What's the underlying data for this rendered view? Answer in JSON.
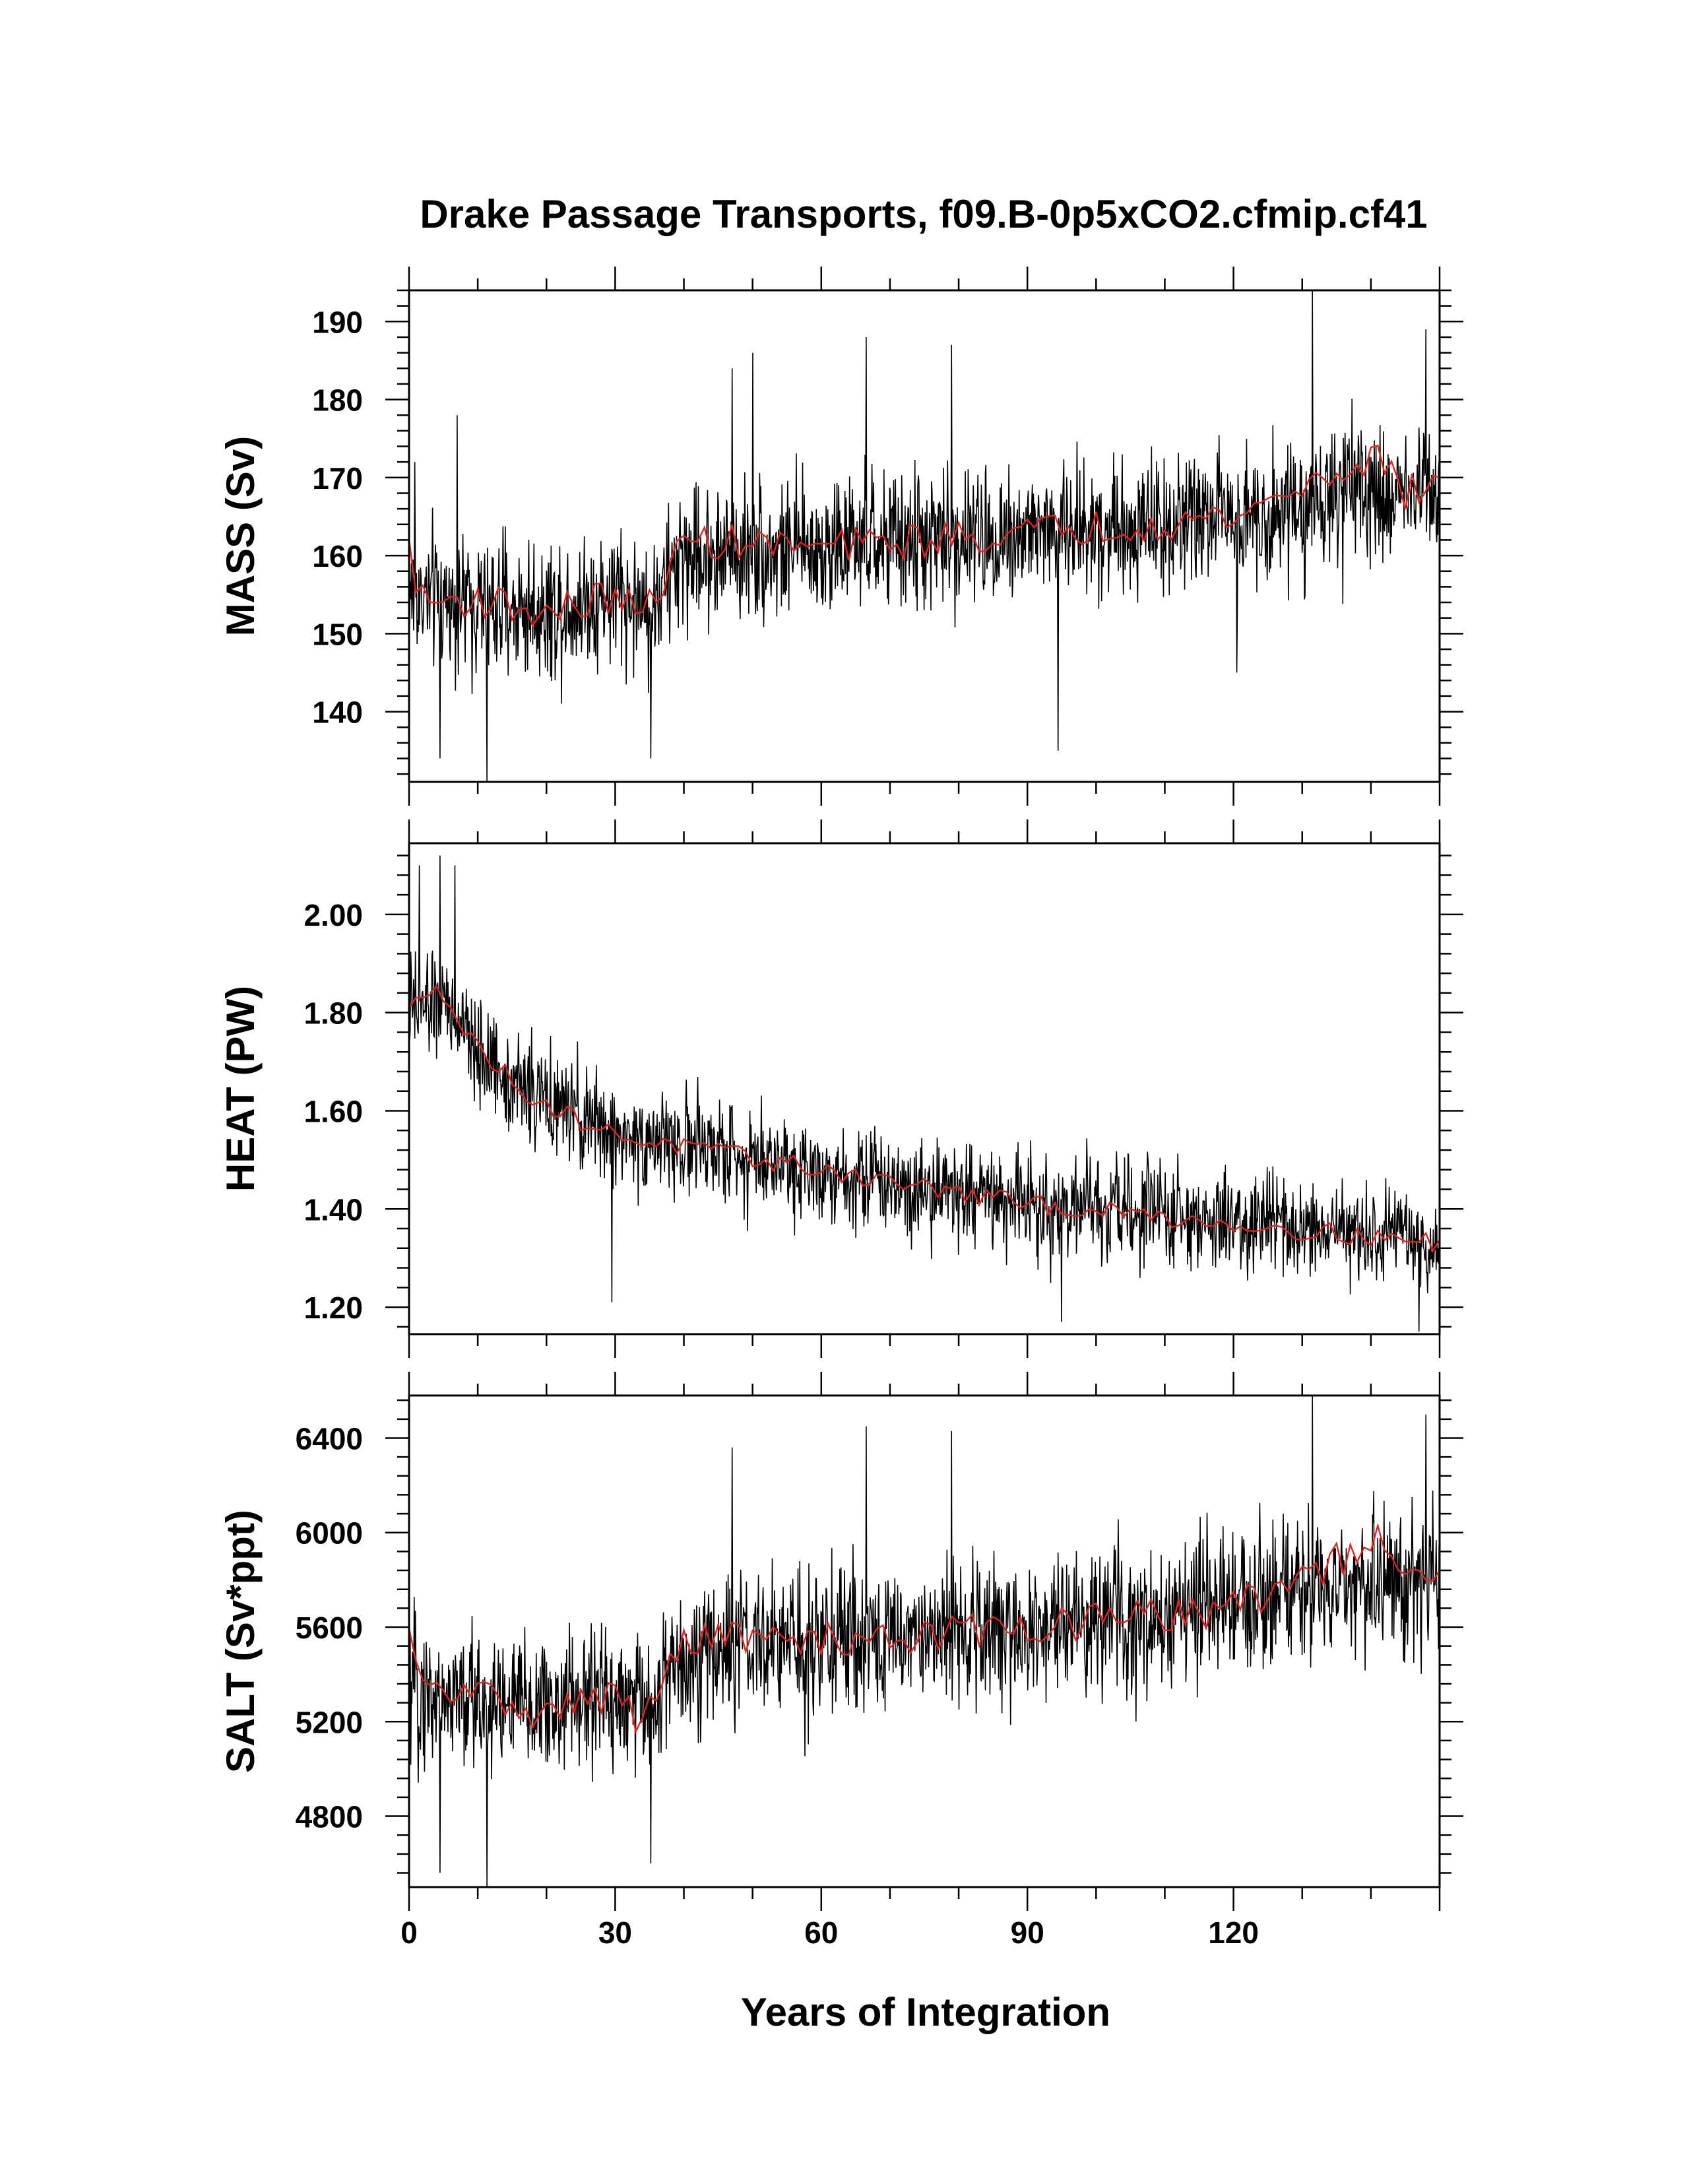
{
  "title": "Drake Passage Transports, f09.B-0p5xCO2.cfmip.cf41",
  "colors": {
    "monthly": "#000000",
    "annual": "#e0231b",
    "frame": "#000000"
  },
  "chart_data": [
    {
      "type": "line",
      "panel": "mass",
      "ylabel": "MASS (Sv)",
      "xlim": [
        0,
        150
      ],
      "ylim": [
        131,
        194
      ],
      "yticks": [
        140,
        150,
        160,
        170,
        180,
        190
      ],
      "ytick_labels": [
        "140",
        "150",
        "160",
        "170",
        "180",
        "190"
      ],
      "series": [
        {
          "kind": "monthly",
          "trend": [
            [
              0,
              155
            ],
            [
              10,
              153.5
            ],
            [
              20,
              153
            ],
            [
              30,
              155
            ],
            [
              35,
              153
            ],
            [
              40,
              160
            ],
            [
              60,
              161
            ],
            [
              90,
              163
            ],
            [
              120,
              165
            ],
            [
              150,
              169
            ]
          ],
          "spread": 8.5,
          "spikes": [
            [
              0.8,
              172
            ],
            [
              4.5,
              134
            ],
            [
              7,
              178
            ],
            [
              11.3,
              131
            ],
            [
              35.2,
              134
            ],
            [
              47,
              184
            ],
            [
              50,
              186
            ],
            [
              66.5,
              188
            ],
            [
              79,
              187
            ],
            [
              94.5,
              135
            ],
            [
              120.5,
              145
            ],
            [
              131.5,
              194
            ],
            [
              148,
              189
            ]
          ]
        },
        {
          "kind": "annual",
          "trend": [
            [
              0,
              161
            ],
            [
              2,
              154
            ],
            [
              10,
              154.5
            ],
            [
              20,
              152.5
            ],
            [
              30,
              155
            ],
            [
              34,
              152
            ],
            [
              38,
              159
            ],
            [
              41,
              162
            ],
            [
              60,
              161
            ],
            [
              90,
              163
            ],
            [
              120,
              165
            ],
            [
              141,
              173
            ],
            [
              145,
              168
            ],
            [
              150,
              169
            ]
          ],
          "spread": 2.3
        }
      ]
    },
    {
      "type": "line",
      "panel": "heat",
      "ylabel": "HEAT (PW)",
      "xlim": [
        0,
        150
      ],
      "ylim": [
        1.145,
        2.145
      ],
      "yticks": [
        1.2,
        1.4,
        1.6,
        1.8,
        2.0
      ],
      "ytick_labels": [
        "1.20",
        "1.40",
        "1.60",
        "1.80",
        "2.00"
      ],
      "series": [
        {
          "kind": "monthly",
          "trend": [
            [
              0,
              1.8
            ],
            [
              5,
              1.82
            ],
            [
              10,
              1.72
            ],
            [
              15,
              1.66
            ],
            [
              20,
              1.62
            ],
            [
              30,
              1.55
            ],
            [
              45,
              1.52
            ],
            [
              60,
              1.48
            ],
            [
              90,
              1.41
            ],
            [
              120,
              1.37
            ],
            [
              150,
              1.33
            ]
          ],
          "spread": 0.1,
          "spikes": [
            [
              1.5,
              2.1
            ],
            [
              4.5,
              2.12
            ],
            [
              6.7,
              2.1
            ],
            [
              29.5,
              1.21
            ],
            [
              95,
              1.17
            ],
            [
              147,
              1.15
            ]
          ]
        },
        {
          "kind": "annual",
          "trend": [
            [
              0,
              1.8
            ],
            [
              4,
              1.87
            ],
            [
              8,
              1.76
            ],
            [
              15,
              1.66
            ],
            [
              20,
              1.61
            ],
            [
              30,
              1.55
            ],
            [
              60,
              1.48
            ],
            [
              90,
              1.41
            ],
            [
              120,
              1.37
            ],
            [
              150,
              1.33
            ]
          ],
          "spread": 0.02
        }
      ]
    },
    {
      "type": "line",
      "panel": "salt",
      "ylabel": "SALT (Sv*ppt)",
      "xlim": [
        0,
        150
      ],
      "ylim": [
        4500,
        6580
      ],
      "yticks": [
        4800,
        5200,
        5600,
        6000,
        6400
      ],
      "ytick_labels": [
        "4800",
        "5200",
        "5600",
        "6000",
        "6400"
      ],
      "series": [
        {
          "kind": "monthly",
          "trend": [
            [
              0,
              5330
            ],
            [
              10,
              5280
            ],
            [
              20,
              5260
            ],
            [
              30,
              5320
            ],
            [
              35,
              5250
            ],
            [
              40,
              5480
            ],
            [
              60,
              5540
            ],
            [
              90,
              5600
            ],
            [
              120,
              5680
            ],
            [
              150,
              5820
            ]
          ],
          "spread": 290,
          "spikes": [
            [
              4.5,
              4560
            ],
            [
              11.3,
              4500
            ],
            [
              35.2,
              4600
            ],
            [
              47,
              6360
            ],
            [
              66.5,
              6450
            ],
            [
              79,
              6430
            ],
            [
              131.5,
              6580
            ],
            [
              148,
              6500
            ]
          ]
        },
        {
          "kind": "annual",
          "trend": [
            [
              0,
              5550
            ],
            [
              2,
              5330
            ],
            [
              10,
              5320
            ],
            [
              20,
              5230
            ],
            [
              30,
              5330
            ],
            [
              34,
              5180
            ],
            [
              38,
              5440
            ],
            [
              41,
              5560
            ],
            [
              60,
              5540
            ],
            [
              90,
              5600
            ],
            [
              120,
              5680
            ],
            [
              141,
              5960
            ],
            [
              145,
              5780
            ],
            [
              150,
              5820
            ]
          ],
          "spread": 75
        }
      ]
    }
  ],
  "xaxis": {
    "label": "Years of Integration",
    "ticks": [
      0,
      30,
      60,
      90,
      120
    ],
    "tick_labels": [
      "0",
      "30",
      "60",
      "90",
      "120"
    ]
  }
}
